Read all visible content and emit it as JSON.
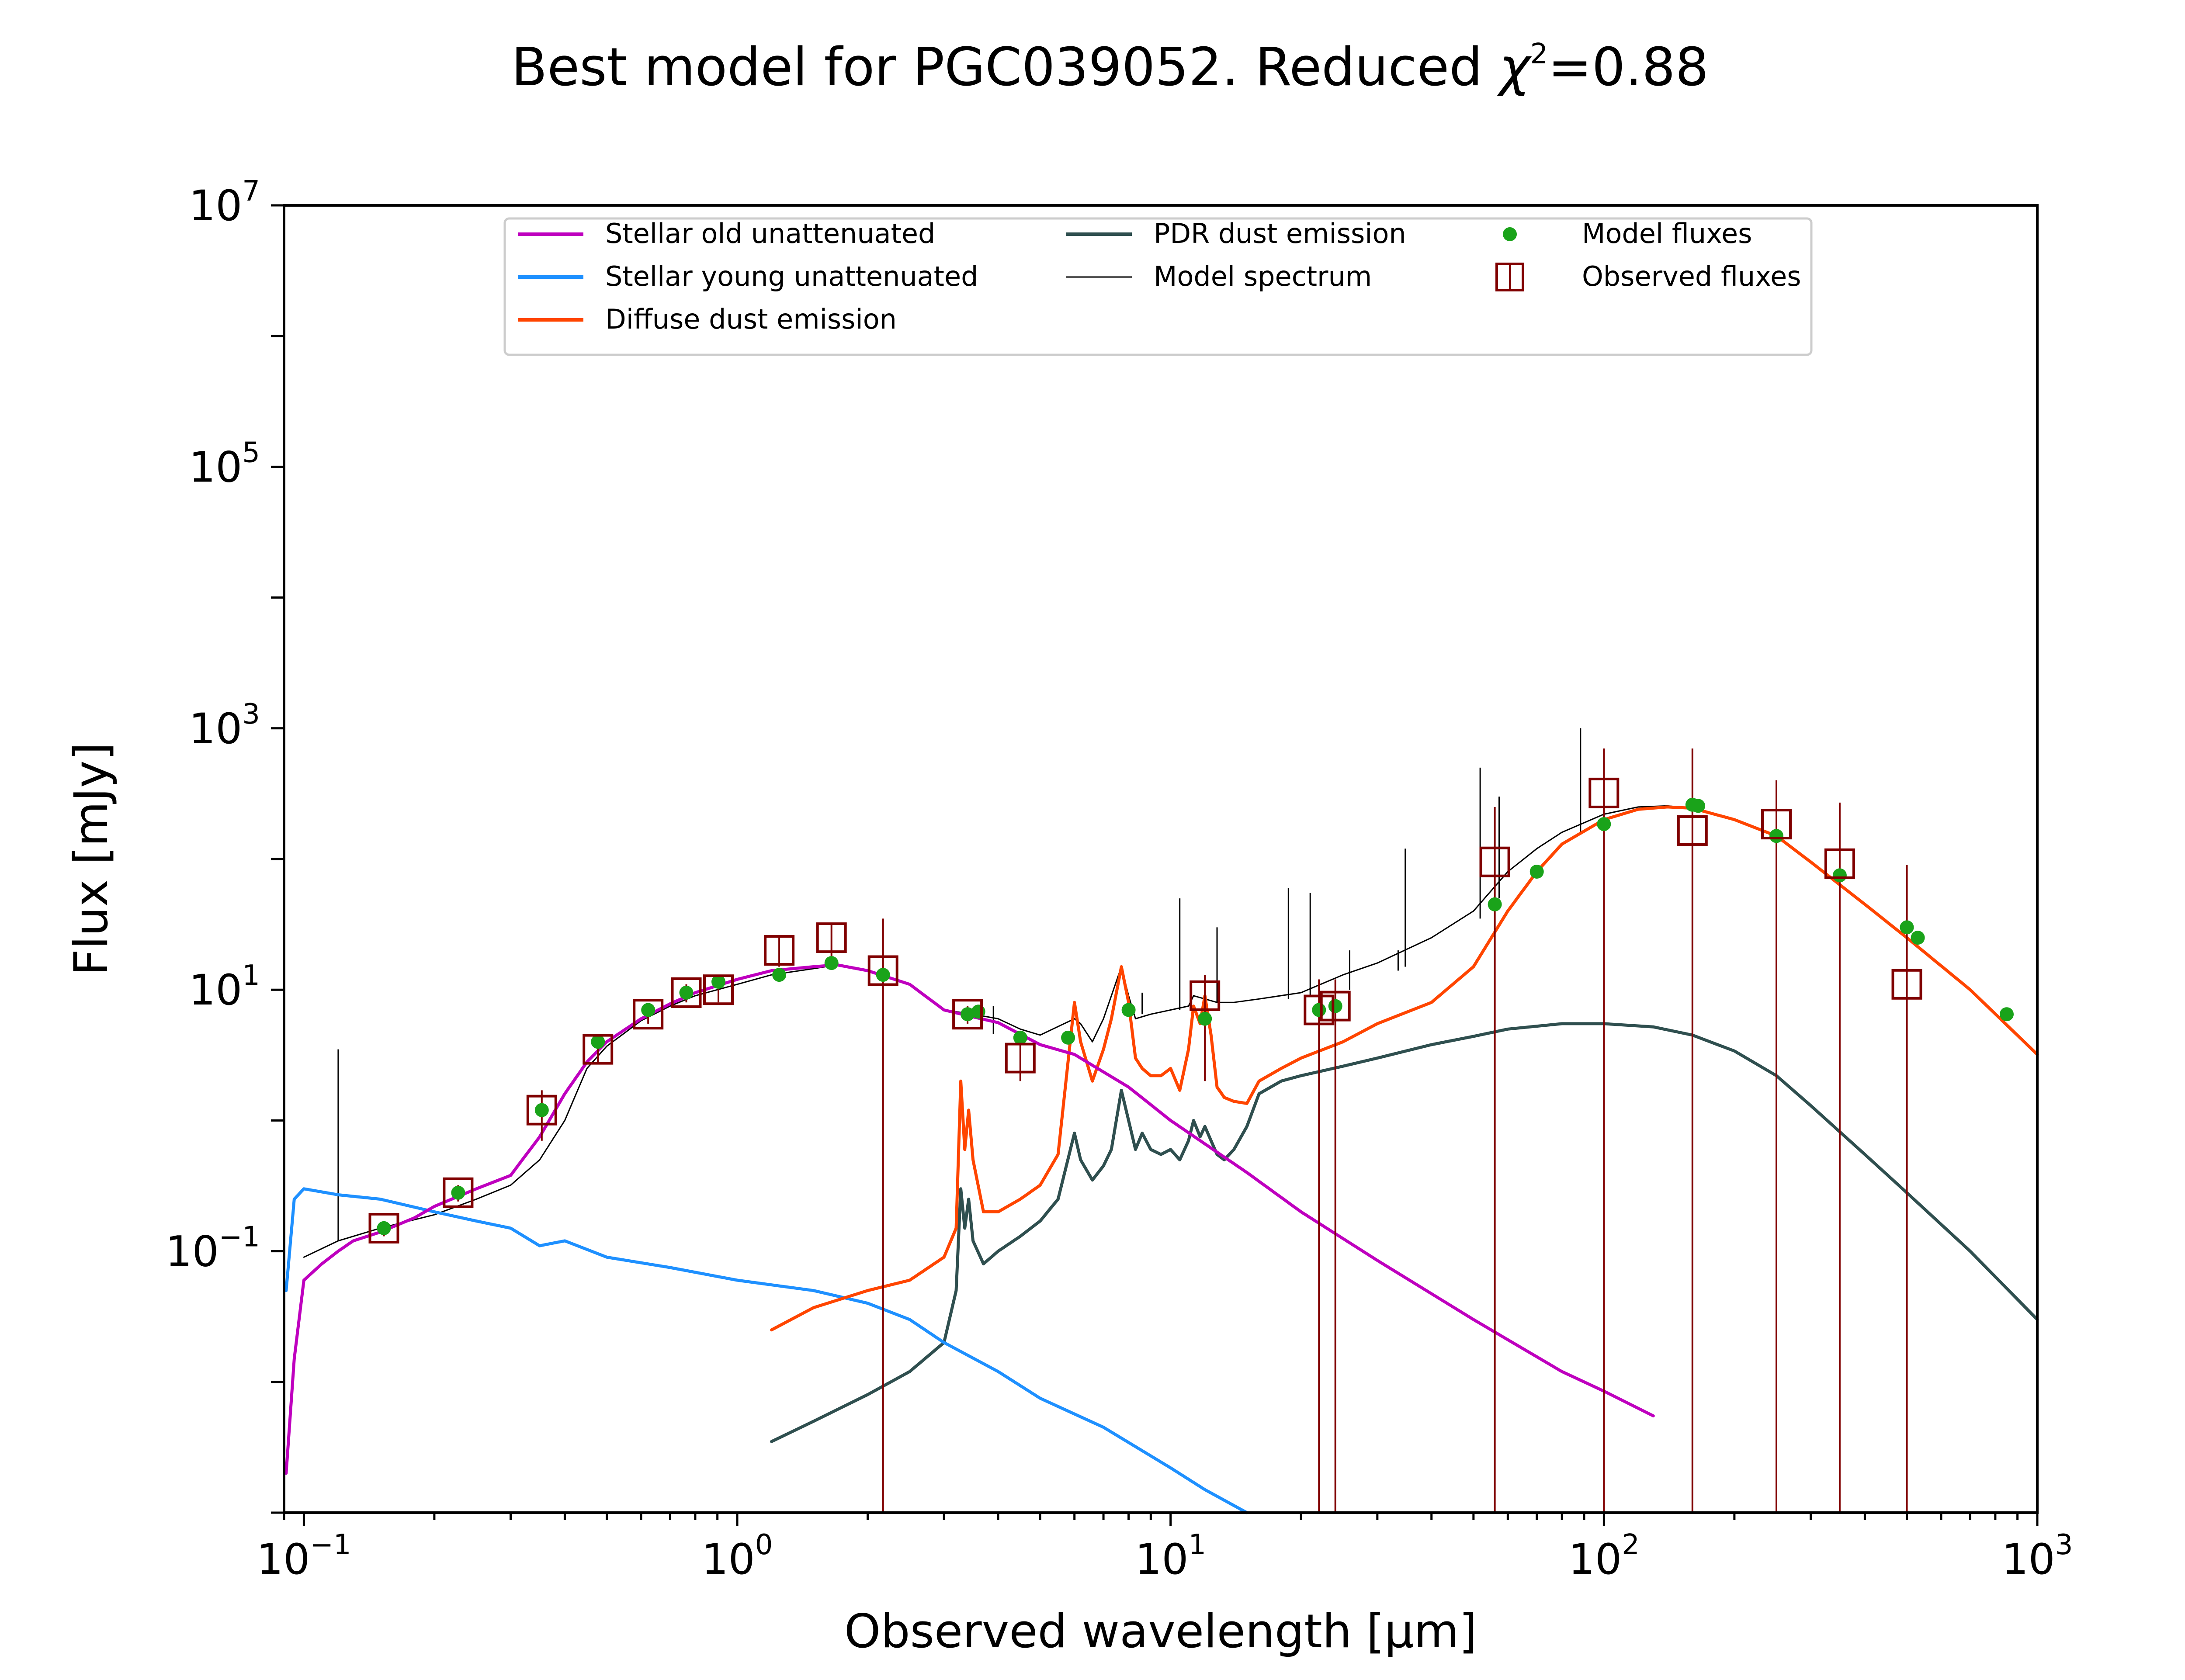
{
  "title": {
    "prefix": "Best model for PGC039052. Reduced ",
    "chi": "χ",
    "sup": "2",
    "suffix": "=0.88"
  },
  "colors": {
    "stellar_old": "#bf00bf",
    "stellar_young": "#1e90ff",
    "diffuse_dust": "#ff4500",
    "pdr_dust": "#2f4f4f",
    "model_spectrum": "#000000",
    "model_fluxes": "#1aa31a",
    "observed": "#800000"
  },
  "chart_data": {
    "type": "line",
    "title": "Best model for PGC039052. Reduced χ²=0.88",
    "xlabel": "Observed wavelength [μm]",
    "ylabel": "Flux [mJy]",
    "xscale": "log",
    "yscale": "log",
    "xlim": [
      0.09,
      1000
    ],
    "ylim": [
      0.001,
      10000000
    ],
    "x_ticks": [
      {
        "base": "10",
        "exp": "−1",
        "value": 0.1
      },
      {
        "base": "10",
        "exp": "0",
        "value": 1
      },
      {
        "base": "10",
        "exp": "1",
        "value": 10
      },
      {
        "base": "10",
        "exp": "2",
        "value": 100
      },
      {
        "base": "10",
        "exp": "3",
        "value": 1000
      }
    ],
    "y_ticks": [
      {
        "base": "10",
        "exp": "−1",
        "value": 0.1
      },
      {
        "base": "10",
        "exp": "1",
        "value": 10
      },
      {
        "base": "10",
        "exp": "3",
        "value": 1000
      },
      {
        "base": "10",
        "exp": "5",
        "value": 100000
      },
      {
        "base": "10",
        "exp": "7",
        "value": 10000000
      }
    ],
    "legend": {
      "placement": "upper center",
      "entries": [
        {
          "label": "Stellar old unattenuated",
          "key": "stellar_old",
          "kind": "line"
        },
        {
          "label": "Stellar young unattenuated",
          "key": "stellar_young",
          "kind": "line"
        },
        {
          "label": "Diffuse dust emission",
          "key": "diffuse_dust",
          "kind": "line"
        },
        {
          "label": "PDR dust emission",
          "key": "pdr_dust",
          "kind": "line"
        },
        {
          "label": "Model spectrum",
          "key": "model_spectrum",
          "kind": "thin"
        },
        {
          "label": "Model fluxes",
          "key": "model_fluxes",
          "kind": "dot"
        },
        {
          "label": "Observed fluxes",
          "key": "observed",
          "kind": "square"
        }
      ]
    },
    "series": [
      {
        "name": "Stellar old unattenuated",
        "key": "stellar_old",
        "x": [
          0.091,
          0.095,
          0.1,
          0.11,
          0.12,
          0.13,
          0.15,
          0.18,
          0.2,
          0.25,
          0.3,
          0.35,
          0.4,
          0.45,
          0.5,
          0.6,
          0.7,
          0.8,
          1.0,
          1.2,
          1.5,
          1.7,
          2.0,
          2.5,
          3.0,
          3.5,
          4.0,
          5.0,
          6.0,
          8.0,
          10,
          15,
          20,
          30,
          50,
          80,
          100,
          130
        ],
        "y": [
          0.002,
          0.015,
          0.06,
          0.08,
          0.1,
          0.12,
          0.14,
          0.18,
          0.22,
          0.3,
          0.38,
          0.75,
          1.6,
          2.8,
          4.0,
          6.0,
          7.8,
          9.5,
          12,
          14,
          15,
          15.5,
          14,
          11,
          7,
          6.2,
          5.6,
          3.8,
          3.2,
          1.8,
          1.0,
          0.4,
          0.2,
          0.085,
          0.03,
          0.012,
          0.0085,
          0.0055
        ]
      },
      {
        "name": "Stellar young unattenuated",
        "key": "stellar_young",
        "x": [
          0.091,
          0.095,
          0.1,
          0.12,
          0.15,
          0.2,
          0.25,
          0.3,
          0.35,
          0.4,
          0.5,
          0.7,
          1.0,
          1.5,
          2.0,
          2.5,
          3.0,
          4.0,
          5.0,
          7.0,
          10,
          12,
          15
        ],
        "y": [
          0.05,
          0.25,
          0.3,
          0.27,
          0.25,
          0.2,
          0.17,
          0.15,
          0.11,
          0.12,
          0.09,
          0.075,
          0.06,
          0.05,
          0.04,
          0.03,
          0.02,
          0.012,
          0.0075,
          0.0045,
          0.0022,
          0.0015,
          0.001
        ]
      },
      {
        "name": "Diffuse dust emission",
        "key": "diffuse_dust",
        "x": [
          1.2,
          1.5,
          2.0,
          2.5,
          3.0,
          3.2,
          3.28,
          3.35,
          3.42,
          3.5,
          3.7,
          4.0,
          4.5,
          5.0,
          5.5,
          6.0,
          6.2,
          6.6,
          7.0,
          7.3,
          7.7,
          8.0,
          8.3,
          8.6,
          9.0,
          9.5,
          10.0,
          10.5,
          11.0,
          11.3,
          11.7,
          12.0,
          12.4,
          12.8,
          13.3,
          14,
          15,
          16,
          18,
          20,
          25,
          30,
          40,
          50,
          60,
          70,
          80,
          100,
          120,
          140,
          160,
          200,
          250,
          300,
          400,
          500,
          700,
          1000
        ],
        "y": [
          0.025,
          0.037,
          0.05,
          0.06,
          0.09,
          0.15,
          2.0,
          0.6,
          1.2,
          0.5,
          0.2,
          0.2,
          0.25,
          0.32,
          0.55,
          8.0,
          4.0,
          2.0,
          3.5,
          6.0,
          15,
          8.0,
          3.0,
          2.5,
          2.2,
          2.2,
          2.5,
          1.7,
          3.5,
          7.5,
          5.5,
          9.0,
          4.5,
          1.8,
          1.5,
          1.4,
          1.35,
          2.0,
          2.5,
          3.0,
          4.0,
          5.5,
          8.0,
          15,
          40,
          80,
          130,
          200,
          240,
          250,
          245,
          200,
          150,
          95,
          45,
          25,
          10,
          3.2
        ]
      },
      {
        "name": "PDR dust emission",
        "key": "pdr_dust",
        "x": [
          1.2,
          1.5,
          2.0,
          2.5,
          3.0,
          3.2,
          3.28,
          3.35,
          3.42,
          3.5,
          3.7,
          4.0,
          4.5,
          5.0,
          5.5,
          6.0,
          6.2,
          6.6,
          7.0,
          7.3,
          7.7,
          8.0,
          8.3,
          8.6,
          9.0,
          9.5,
          10.0,
          10.5,
          11.0,
          11.3,
          11.7,
          12.0,
          12.4,
          12.8,
          13.3,
          14,
          15,
          16,
          18,
          20,
          25,
          30,
          40,
          50,
          60,
          80,
          100,
          130,
          160,
          200,
          250,
          300,
          400,
          500,
          700,
          1000
        ],
        "y": [
          0.0035,
          0.005,
          0.008,
          0.012,
          0.02,
          0.05,
          0.3,
          0.15,
          0.25,
          0.12,
          0.08,
          0.1,
          0.13,
          0.17,
          0.25,
          0.8,
          0.5,
          0.35,
          0.45,
          0.6,
          1.7,
          1.0,
          0.6,
          0.8,
          0.6,
          0.55,
          0.6,
          0.5,
          0.7,
          1.0,
          0.75,
          0.9,
          0.7,
          0.55,
          0.5,
          0.6,
          0.9,
          1.6,
          2.0,
          2.2,
          2.6,
          3.0,
          3.8,
          4.4,
          5.0,
          5.5,
          5.5,
          5.2,
          4.5,
          3.4,
          2.2,
          1.3,
          0.55,
          0.28,
          0.1,
          0.03
        ]
      },
      {
        "name": "Model spectrum",
        "key": "model_spectrum",
        "x": [
          0.1,
          0.12,
          0.15,
          0.2,
          0.25,
          0.3,
          0.35,
          0.4,
          0.45,
          0.5,
          0.6,
          0.7,
          0.8,
          1.0,
          1.2,
          1.5,
          1.7,
          2.0,
          2.5,
          3.0,
          3.5,
          4.0,
          4.5,
          5.0,
          6.0,
          6.2,
          6.6,
          7.0,
          7.7,
          8.0,
          8.3,
          9.0,
          10,
          11,
          11.3,
          12,
          12.8,
          14,
          16,
          20,
          25,
          30,
          40,
          50,
          60,
          70,
          80,
          100,
          120,
          140,
          160,
          200,
          250,
          300,
          400,
          500,
          700,
          1000
        ],
        "y": [
          0.09,
          0.12,
          0.15,
          0.19,
          0.25,
          0.32,
          0.5,
          1.0,
          2.5,
          3.7,
          5.8,
          7.5,
          9.0,
          11,
          13,
          14.5,
          15.5,
          14,
          11,
          7,
          6.5,
          6.0,
          5.0,
          4.5,
          6.0,
          5.5,
          4.0,
          6.0,
          15,
          9.0,
          6.0,
          6.5,
          7.0,
          7.5,
          9.0,
          8.5,
          8.0,
          8.0,
          8.5,
          9.5,
          13,
          16,
          25,
          40,
          80,
          120,
          160,
          220,
          250,
          255,
          245,
          200,
          150,
          95,
          45,
          25,
          10,
          3.2
        ]
      },
      {
        "name": "Spectral lines",
        "key": "model_spectrum",
        "kind": "lines",
        "lines": [
          [
            0.12,
            0.12,
            3.5
          ],
          [
            3.9,
            4.6,
            7.5
          ],
          [
            8.6,
            6.5,
            9.5
          ],
          [
            10.5,
            7.0,
            50
          ],
          [
            12.8,
            8.0,
            30
          ],
          [
            18.7,
            8.5,
            60
          ],
          [
            21.0,
            9.0,
            55
          ],
          [
            25.9,
            10.0,
            20
          ],
          [
            33.5,
            14.0,
            20
          ],
          [
            34.8,
            15.0,
            120
          ],
          [
            51.8,
            35,
            500
          ],
          [
            57.3,
            50,
            300
          ],
          [
            88.3,
            160,
            1000
          ]
        ]
      }
    ],
    "model_fluxes": {
      "x": [
        0.153,
        0.227,
        0.354,
        0.477,
        0.623,
        0.763,
        0.905,
        1.25,
        1.65,
        2.17,
        3.4,
        3.6,
        4.5,
        5.8,
        8.0,
        12,
        22,
        24,
        56,
        70,
        100,
        160,
        165,
        250,
        350,
        500,
        530,
        850
      ],
      "y": [
        0.15,
        0.28,
        1.2,
        4.0,
        7.0,
        9.5,
        11.5,
        13,
        16,
        13,
        6.5,
        6.8,
        4.3,
        4.3,
        7.0,
        6.0,
        7.0,
        7.5,
        45,
        80,
        185,
        260,
        255,
        150,
        75,
        30,
        25,
        6.5
      ]
    },
    "observed_fluxes": {
      "x": [
        0.153,
        0.227,
        0.354,
        0.477,
        0.623,
        0.763,
        0.905,
        1.25,
        1.65,
        2.17,
        3.4,
        4.5,
        12,
        22,
        24,
        56,
        100,
        160,
        250,
        350,
        500
      ],
      "y": [
        0.15,
        0.28,
        1.2,
        3.5,
        6.5,
        9.5,
        10,
        20,
        25,
        14,
        6.5,
        3.0,
        9.0,
        7.0,
        7.5,
        95,
        320,
        165,
        185,
        92,
        11
      ],
      "err_low": [
        0.13,
        0.24,
        0.7,
        2.8,
        5.5,
        8.0,
        8.0,
        15,
        18,
        0.001,
        5.5,
        2.0,
        2.0,
        0.001,
        0.001,
        0.001,
        0.001,
        0.001,
        0.001,
        0.001,
        0.001
      ],
      "err_high": [
        0.17,
        0.32,
        1.7,
        4.2,
        7.5,
        11,
        12,
        25,
        32,
        35,
        7.5,
        4.0,
        13,
        12,
        12,
        250,
        700,
        700,
        400,
        270,
        90
      ]
    }
  }
}
